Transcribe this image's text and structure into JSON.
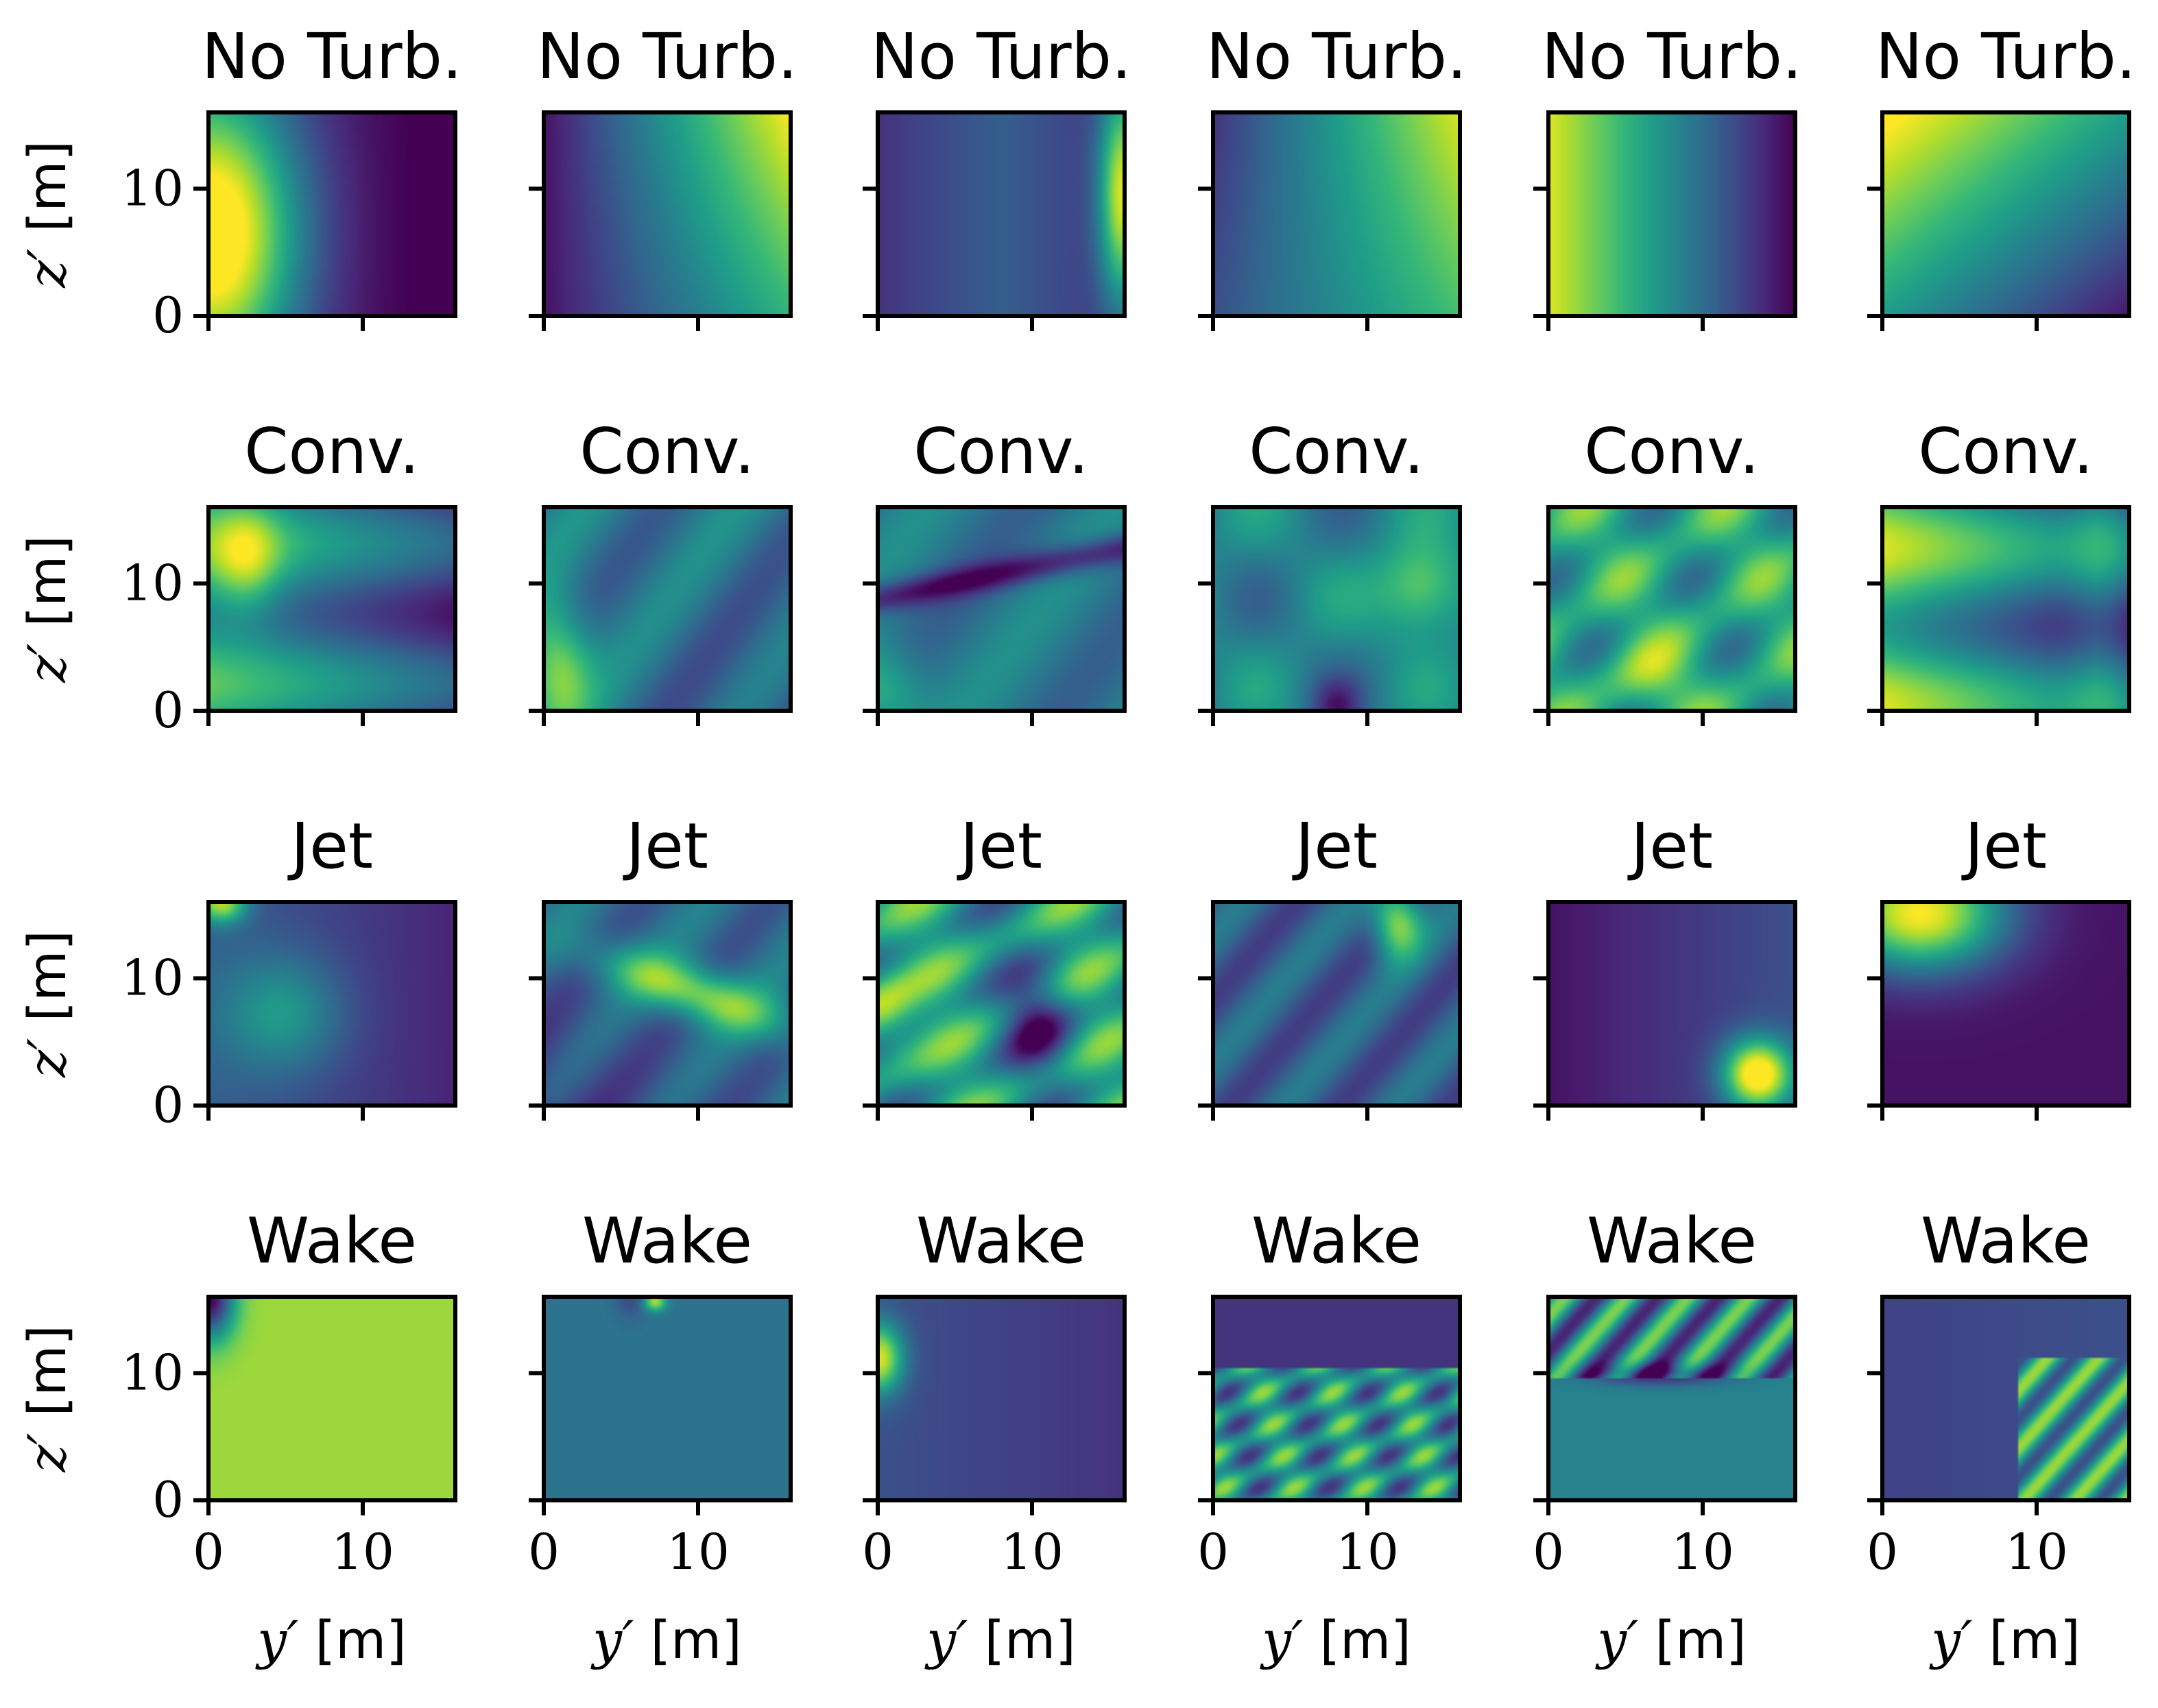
{
  "chart_data": {
    "type": "heatmap",
    "colormap": "viridis",
    "colormap_stops": [
      "#440154",
      "#482878",
      "#3e4989",
      "#31688e",
      "#26828e",
      "#1f9e89",
      "#35b779",
      "#6ece58",
      "#b5de2b",
      "#fde725"
    ],
    "grid": "4 rows x 6 columns",
    "x_axis": {
      "label_var": "y′",
      "label_unit": "[m]",
      "ticks": [
        0,
        10
      ],
      "range": [
        0,
        16
      ]
    },
    "y_axis": {
      "label_var": "z′",
      "label_unit": "[m]",
      "ticks": [
        0,
        10
      ],
      "range": [
        0,
        16
      ]
    },
    "rows": [
      {
        "title": "No Turb.",
        "panels": 6
      },
      {
        "title": "Conv.",
        "panels": 6
      },
      {
        "title": "Jet",
        "panels": 6
      },
      {
        "title": "Wake",
        "panels": 6
      }
    ]
  }
}
